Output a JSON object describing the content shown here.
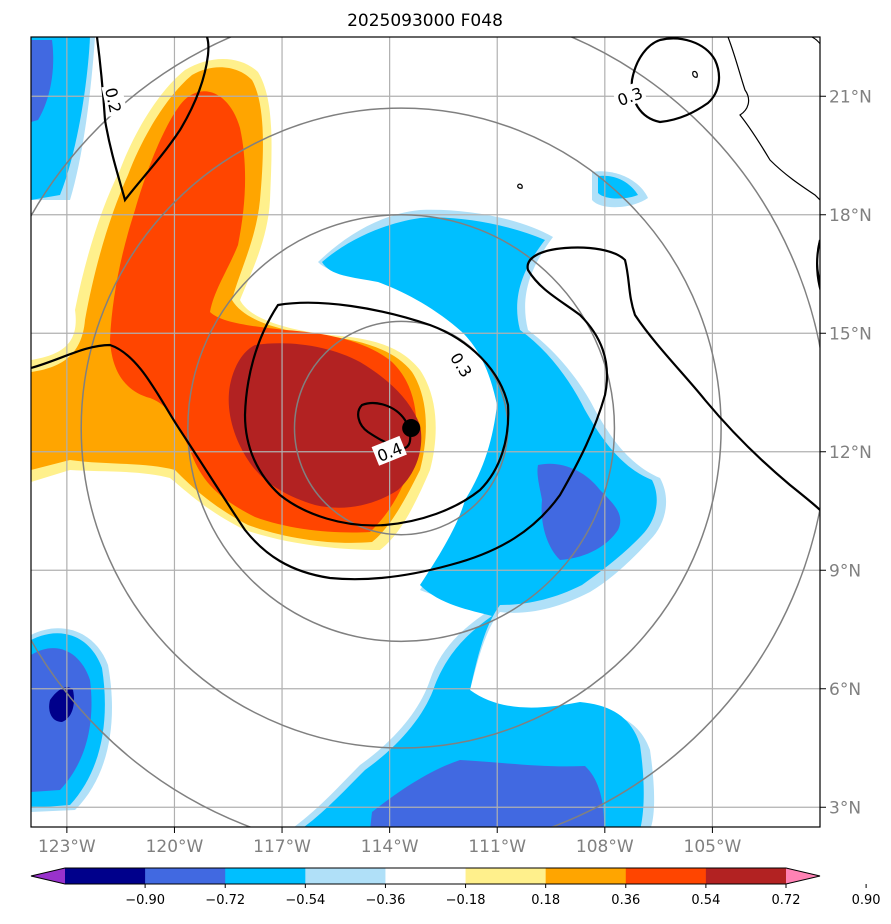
{
  "chart_data": {
    "type": "heatmap",
    "title": "2025093000 F048",
    "lon_range": [
      -124.0,
      -102.0
    ],
    "lat_range": [
      2.5,
      22.5
    ],
    "x_ticks": [
      {
        "value": -123,
        "label": "123°W"
      },
      {
        "value": -120,
        "label": "120°W"
      },
      {
        "value": -117,
        "label": "117°W"
      },
      {
        "value": -114,
        "label": "114°W"
      },
      {
        "value": -111,
        "label": "111°W"
      },
      {
        "value": -108,
        "label": "108°W"
      },
      {
        "value": -105,
        "label": "105°W"
      }
    ],
    "y_ticks": [
      {
        "value": 3,
        "label": "3°N"
      },
      {
        "value": 6,
        "label": "6°N"
      },
      {
        "value": 9,
        "label": "9°N"
      },
      {
        "value": 12,
        "label": "12°N"
      },
      {
        "value": 15,
        "label": "15°N"
      },
      {
        "value": 18,
        "label": "18°N"
      },
      {
        "value": 21,
        "label": "21°N"
      }
    ],
    "grid": true,
    "storm_center": {
      "lon": -113.4,
      "lat": 12.6
    },
    "range_rings_deg_lat": [
      2.7,
      5.4,
      8.1,
      10.8
    ],
    "contour_labels": [
      {
        "text": "0.2",
        "lon": -121.7,
        "lat": 20.9,
        "angle": 78
      },
      {
        "text": "0.3",
        "lon": -107.3,
        "lat": 21.0,
        "angle": -20
      },
      {
        "text": "0.3",
        "lon": -112.0,
        "lat": 14.2,
        "angle": 58
      },
      {
        "text": "0.4",
        "lon": -114.0,
        "lat": 12.0,
        "angle": -22
      }
    ],
    "colorbar": {
      "levels": [
        "−0.90",
        "−0.72",
        "−0.54",
        "−0.36",
        "−0.18",
        "0.18",
        "0.36",
        "0.54",
        "0.72",
        "0.90"
      ],
      "colors": [
        "#9932cc",
        "#00008b",
        "#4169e1",
        "#00bfff",
        "#b0e0f8",
        "#ffffff",
        "#fff08c",
        "#ffa500",
        "#ff4500",
        "#b22222",
        "#ff82b4"
      ],
      "extend": "both"
    }
  }
}
